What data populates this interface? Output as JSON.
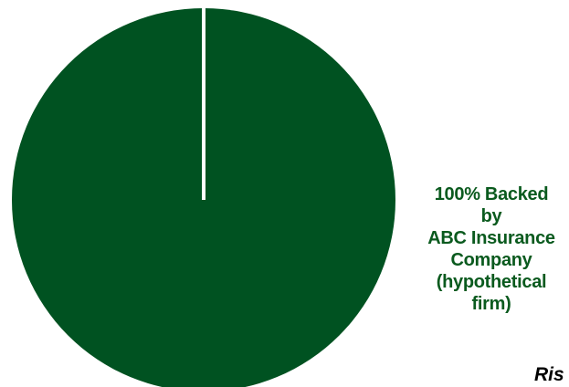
{
  "chart_data": {
    "type": "pie",
    "slices": [
      {
        "label": "100% Backed\nby\nABC Insurance\nCompany\n(hypothetical\nfirm)",
        "value": 100,
        "color": "#005221"
      }
    ],
    "separator_color": "#ffffff",
    "title": "",
    "legend": "none"
  },
  "corner_text": "Ris"
}
